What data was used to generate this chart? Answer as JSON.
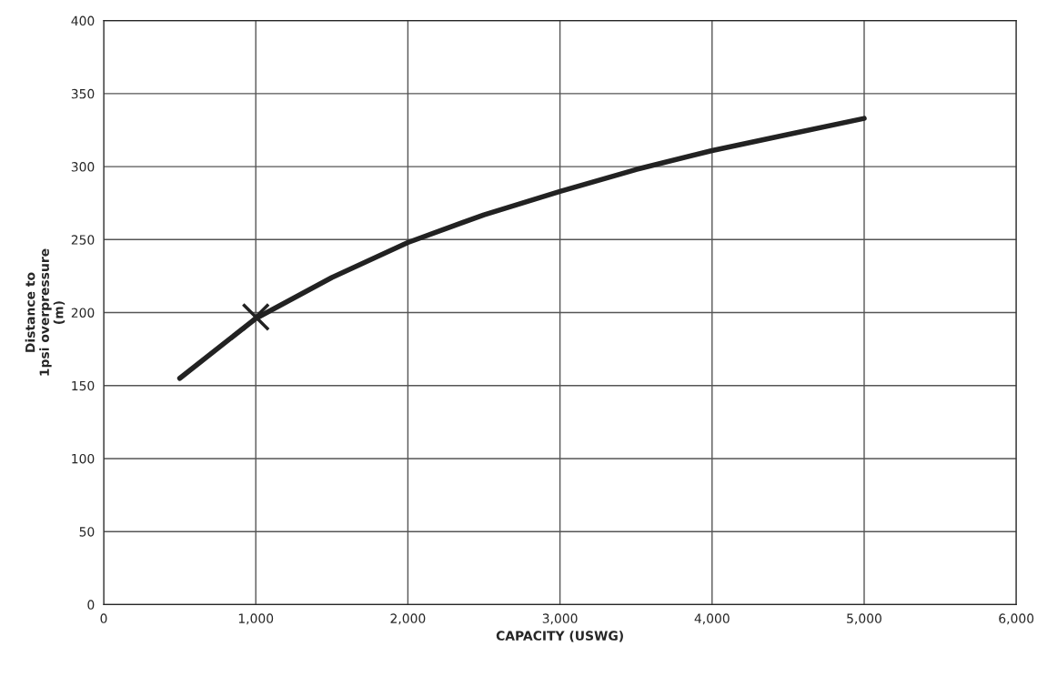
{
  "chart_data": {
    "type": "line",
    "xlabel": "CAPACITY (USWG)",
    "ylabel": "Distance to\n1psi overpressure\n(m)",
    "xlim": [
      0,
      6000
    ],
    "ylim": [
      0,
      400
    ],
    "xticks": [
      0,
      {
        "value": 1000,
        "label": "1,000"
      },
      {
        "value": 2000,
        "label": "2,000"
      },
      {
        "value": 3000,
        "label": "3,000"
      },
      {
        "value": 4000,
        "label": "4,000"
      },
      {
        "value": 5000,
        "label": "5,000"
      },
      {
        "value": 6000,
        "label": "6,000"
      }
    ],
    "yticks": [
      0,
      50,
      100,
      150,
      200,
      250,
      300,
      350,
      400
    ],
    "grid": true,
    "series": [
      {
        "color": "#222222",
        "x": [
          500,
          1000,
          1500,
          2000,
          2500,
          3000,
          3500,
          4000,
          4500,
          5000
        ],
        "values": [
          155,
          196,
          224,
          248,
          267,
          283,
          298,
          311,
          322,
          333
        ]
      },
      {
        "type": "scatter",
        "color": "#222222",
        "marker": "cross",
        "x": [
          1000
        ],
        "values": [
          197
        ]
      }
    ]
  }
}
